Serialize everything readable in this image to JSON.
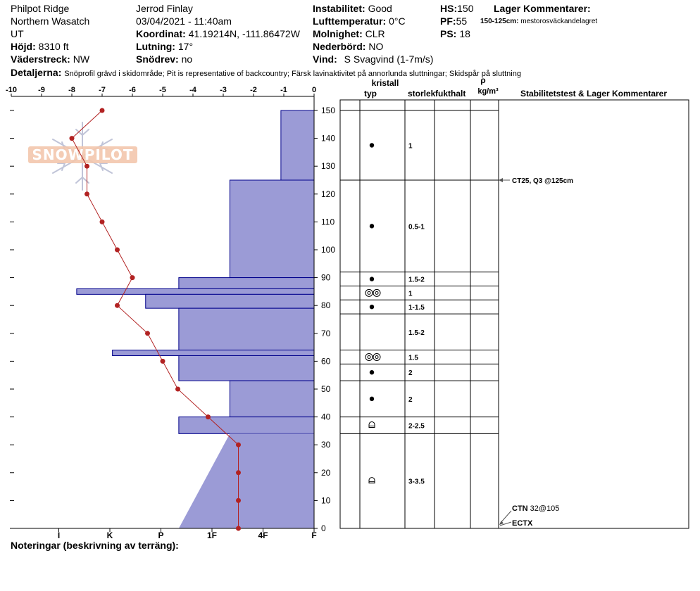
{
  "header": {
    "location": "Philpot Ridge",
    "range": "Northern Wasatch",
    "state": "UT",
    "elevation_label": "Höjd:",
    "elevation_value": "8310 ft",
    "aspect_label": "Väderstreck:",
    "aspect_value": "NW",
    "observer": "Jerrod Finlay",
    "datetime": "03/04/2021 - 11:40am",
    "coord_label": "Koordinat:",
    "coord_value": "41.19214N, -111.86472W",
    "slope_label": "Lutning:",
    "slope_value": "17°",
    "drift_label": "Snödrev:",
    "drift_value": "no",
    "instability_label": "Instabilitet:",
    "instability_value": "Good",
    "airtemp_label": "Lufttemperatur:",
    "airtemp_value": "0°C",
    "sky_label": "Molnighet:",
    "sky_value": "CLR",
    "precip_label": "Nederbörd:",
    "precip_value": "NO",
    "wind_label": "Vind:",
    "wind_value": "S Svagvind (1-7m/s)",
    "hs_label": "HS:",
    "hs_value": "150",
    "pf_label": "PF:",
    "pf_value": "55",
    "ps_label": "PS:",
    "ps_value": "18",
    "layer_comments_label": "Lager Kommentarer:",
    "layer_comment_range": "150-125cm:",
    "layer_comment_text": "mestorosväckandelagret",
    "details_label": "Detaljerna:",
    "details_text": "Snöprofil grävd i skidområde;  Pit is representative of backcountry;  Färsk lavinaktivitet på annorlunda sluttningar;  Skidspår på sluttning"
  },
  "logo_text": "SNOWPILOT",
  "notes_label": "Noteringar (beskrivning av terräng):",
  "table_headers": {
    "crystal": "kristall",
    "type": "typ",
    "size": "storlek",
    "moisture": "fukthalt",
    "rho": "ρ",
    "density_unit": "kg/m³",
    "stability": "Stabilitetstest & Lager Kommentarer"
  },
  "colors": {
    "hardness_fill": "#9b9bd6",
    "hardness_stroke": "#00008b",
    "temperature": "#b22222"
  },
  "chart_data": {
    "type": "snow-profile",
    "temperature_axis": {
      "range": [
        -10,
        0
      ],
      "ticks": [
        -10,
        -9,
        -8,
        -7,
        -6,
        -5,
        -4,
        -3,
        -2,
        -1,
        0
      ]
    },
    "depth_axis": {
      "range": [
        0,
        150
      ],
      "ticks": [
        0,
        10,
        20,
        30,
        40,
        50,
        60,
        70,
        80,
        90,
        100,
        110,
        120,
        130,
        140,
        150
      ]
    },
    "hardness_axis": {
      "ticks": [
        "I",
        "K",
        "P",
        "1F",
        "4F",
        "F"
      ],
      "tick_values": [
        5,
        4,
        3,
        2,
        1,
        0
      ]
    },
    "temperature_profile": [
      {
        "depth": 150,
        "temp": -7.0
      },
      {
        "depth": 140,
        "temp": -8.0
      },
      {
        "depth": 130,
        "temp": -7.5
      },
      {
        "depth": 120,
        "temp": -7.5
      },
      {
        "depth": 110,
        "temp": -7.0
      },
      {
        "depth": 100,
        "temp": -6.5
      },
      {
        "depth": 90,
        "temp": -6.0
      },
      {
        "depth": 80,
        "temp": -6.5
      },
      {
        "depth": 70,
        "temp": -5.5
      },
      {
        "depth": 60,
        "temp": -5.0
      },
      {
        "depth": 50,
        "temp": -4.5
      },
      {
        "depth": 40,
        "temp": -3.5
      },
      {
        "depth": 30,
        "temp": -2.5
      },
      {
        "depth": 20,
        "temp": -2.5
      },
      {
        "depth": 10,
        "temp": -2.5
      },
      {
        "depth": 0,
        "temp": -2.5
      }
    ],
    "hardness_layers": [
      {
        "top": 150,
        "bottom": 125,
        "hardness": 0.65
      },
      {
        "top": 125,
        "bottom": 90,
        "hardness": 1.65
      },
      {
        "top": 90,
        "bottom": 86,
        "hardness": 2.65
      },
      {
        "top": 86,
        "bottom": 84,
        "hardness": 4.65
      },
      {
        "top": 84,
        "bottom": 79,
        "hardness": 3.3
      },
      {
        "top": 79,
        "bottom": 64,
        "hardness": 2.65
      },
      {
        "top": 64,
        "bottom": 62,
        "hardness": 3.95
      },
      {
        "top": 62,
        "bottom": 53,
        "hardness": 2.65
      },
      {
        "top": 53,
        "bottom": 40,
        "hardness": 1.65
      },
      {
        "top": 40,
        "bottom": 34,
        "hardness": 2.65
      },
      {
        "top": 34,
        "bottom": 0,
        "hardness": 1.65,
        "bottom_hardness": 2.65,
        "gradient": true
      }
    ],
    "layers": [
      {
        "top": 150,
        "bottom": 125,
        "grain": "dot",
        "size": "1"
      },
      {
        "top": 125,
        "bottom": 92,
        "grain": "dot",
        "size": "0.5-1"
      },
      {
        "top": 92,
        "bottom": 87,
        "grain": "dot",
        "size": "1.5-2"
      },
      {
        "top": 87,
        "bottom": 82,
        "grain": "double-ring",
        "size": "1"
      },
      {
        "top": 82,
        "bottom": 77,
        "grain": "dot",
        "size": "1-1.5"
      },
      {
        "top": 77,
        "bottom": 64,
        "grain": "",
        "size": "1.5-2"
      },
      {
        "top": 64,
        "bottom": 59,
        "grain": "double-ring",
        "size": "1.5"
      },
      {
        "top": 59,
        "bottom": 53,
        "grain": "dot",
        "size": "2"
      },
      {
        "top": 53,
        "bottom": 40,
        "grain": "dot",
        "size": "2"
      },
      {
        "top": 40,
        "bottom": 34,
        "grain": "faceted",
        "size": "2-2.5"
      },
      {
        "top": 34,
        "bottom": 0,
        "grain": "faceted",
        "size": "3-3.5"
      }
    ],
    "stability_tests": [
      {
        "depth": 125,
        "label": "CT25, Q3 @125cm"
      },
      {
        "depth": 3,
        "label_bold": "CTN",
        "label_rest": "32@105"
      },
      {
        "depth": 1,
        "label_bold": "ECTX",
        "label_rest": ""
      }
    ]
  }
}
